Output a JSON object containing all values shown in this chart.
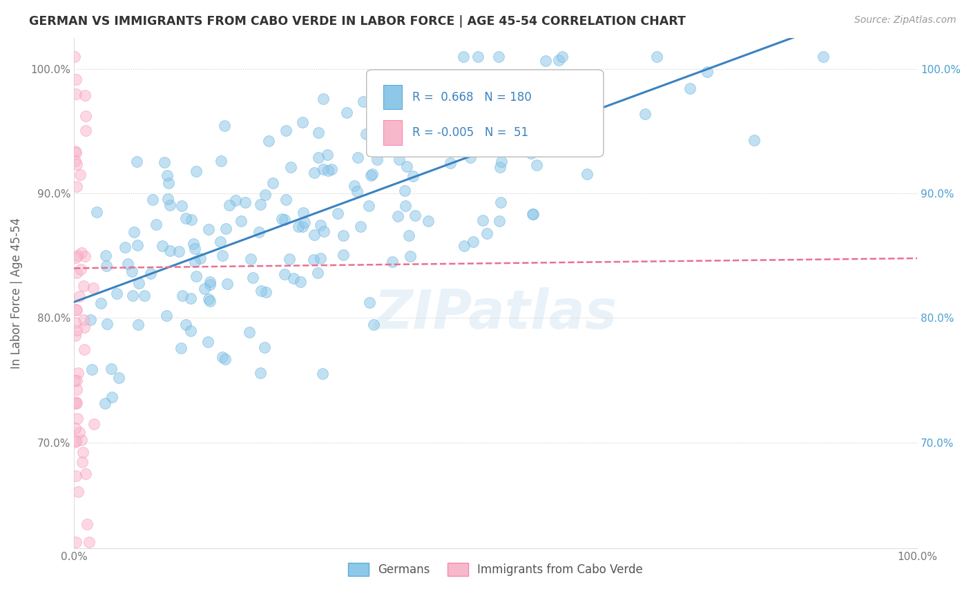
{
  "title": "GERMAN VS IMMIGRANTS FROM CABO VERDE IN LABOR FORCE | AGE 45-54 CORRELATION CHART",
  "source": "Source: ZipAtlas.com",
  "ylabel": "In Labor Force | Age 45-54",
  "xlim": [
    0.0,
    1.0
  ],
  "ylim": [
    0.615,
    1.025
  ],
  "yticks": [
    0.7,
    0.8,
    0.9,
    1.0
  ],
  "ytick_labels": [
    "70.0%",
    "80.0%",
    "90.0%",
    "100.0%"
  ],
  "german_R": 0.668,
  "german_N": 180,
  "cabo_R": -0.005,
  "cabo_N": 51,
  "blue_color": "#8ec8e8",
  "pink_color": "#f8b8cc",
  "blue_edge": "#5aabda",
  "pink_edge": "#f888aa",
  "blue_line": "#3a82c0",
  "pink_line": "#e87090",
  "background": "#ffffff",
  "grid_color": "#cccccc",
  "watermark": "ZIPatlas",
  "legend_label_german": "Germans",
  "legend_label_cabo": "Immigrants from Cabo Verde",
  "title_color": "#333333",
  "source_color": "#999999",
  "right_tick_color": "#4a9fd0"
}
